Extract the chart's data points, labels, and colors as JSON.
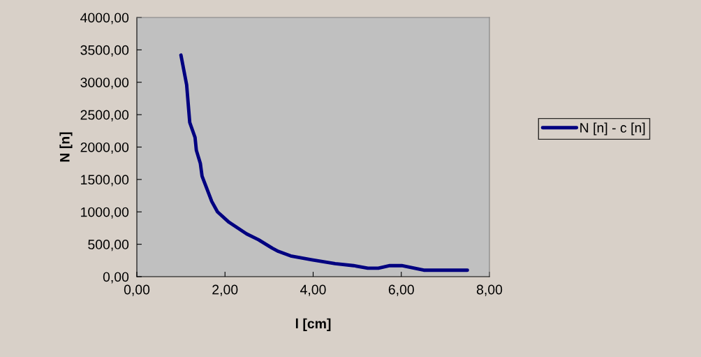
{
  "chart_data": {
    "type": "line",
    "xlabel": "l [cm]",
    "ylabel": "N [n]",
    "xlim": [
      0,
      8
    ],
    "xticks": [
      {
        "value": 0,
        "label": "0,00"
      },
      {
        "value": 2,
        "label": "2,00"
      },
      {
        "value": 4,
        "label": "4,00"
      },
      {
        "value": 6,
        "label": "6,00"
      },
      {
        "value": 8,
        "label": "8,00"
      }
    ],
    "ylim": [
      0,
      4000
    ],
    "yticks": [
      {
        "value": 0,
        "label": "0,00"
      },
      {
        "value": 500,
        "label": "500,00"
      },
      {
        "value": 1000,
        "label": "1000,00"
      },
      {
        "value": 1500,
        "label": "1500,00"
      },
      {
        "value": 2000,
        "label": "2000,00"
      },
      {
        "value": 2500,
        "label": "2500,00"
      },
      {
        "value": 3000,
        "label": "3000,00"
      },
      {
        "value": 3500,
        "label": "3500,00"
      },
      {
        "value": 4000,
        "label": "4000,00"
      }
    ],
    "grid": false,
    "legend": "right",
    "marker": "none",
    "line_style": "solid",
    "x": [
      1.0,
      1.13,
      1.2,
      1.32,
      1.35,
      1.44,
      1.48,
      1.7,
      1.83,
      2.09,
      2.49,
      2.76,
      3.07,
      3.21,
      3.49,
      3.97,
      4.5,
      4.92,
      5.24,
      5.48,
      5.74,
      6.01,
      6.51,
      7.5
    ],
    "series": [
      {
        "name": "N [n] - c [n]",
        "color": "#000080",
        "values": [
          3420,
          2960,
          2380,
          2150,
          1950,
          1750,
          1550,
          1160,
          1000,
          840,
          660,
          570,
          440,
          390,
          320,
          260,
          200,
          170,
          130,
          130,
          170,
          170,
          100,
          100
        ]
      }
    ]
  }
}
